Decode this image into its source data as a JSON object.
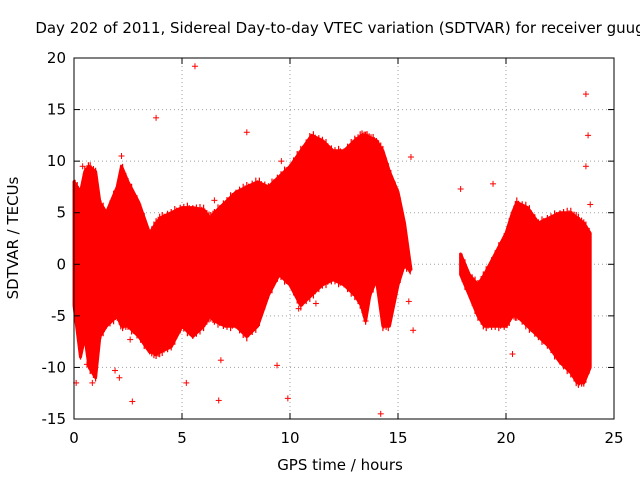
{
  "chart_data": {
    "type": "scatter",
    "title": "Day 202 of 2011, Sidereal Day-to-day VTEC variation (SDTVAR) for receiver guug",
    "xlabel": "GPS time / hours",
    "ylabel": "SDTVAR / TECUs",
    "xlim": [
      0,
      25
    ],
    "ylim": [
      -15,
      20
    ],
    "xticks": [
      0,
      5,
      10,
      15,
      20,
      25
    ],
    "yticks": [
      -15,
      -10,
      -5,
      0,
      5,
      10,
      15,
      20
    ],
    "grid": true,
    "marker": "+",
    "color": "#ff0000",
    "series": [
      {
        "name": "SDTVAR",
        "envelope": {
          "segments": [
            {
              "x": [
                0,
                0.3,
                0.5,
                0.7,
                1.0,
                1.2,
                1.5,
                2.0,
                2.2,
                2.5,
                3.0,
                3.5,
                3.8,
                4.0,
                4.5,
                5.0,
                5.5,
                6.0,
                6.3,
                6.5,
                7.0,
                7.5,
                8.0,
                8.5,
                9.0,
                9.5,
                10.0,
                10.5,
                11.0,
                11.5,
                12.0,
                12.5,
                13.0,
                13.3,
                13.5,
                13.7,
                14.0,
                14.3,
                14.6,
                15.0,
                15.3,
                15.5,
                15.6
              ],
              "upper": [
                8,
                7,
                9,
                9.5,
                9,
                6,
                5,
                7.5,
                9.5,
                8,
                6,
                3,
                4,
                4.5,
                5,
                5.5,
                5.5,
                5.3,
                4.5,
                5,
                6,
                7,
                7.5,
                8,
                7.5,
                8.5,
                9.5,
                11,
                12.5,
                12,
                11,
                11,
                12,
                12.5,
                12.5,
                12.3,
                12,
                11,
                9,
                7,
                4,
                1,
                -0.5
              ],
              "lower": [
                -4,
                -9,
                -7,
                -10,
                -11,
                -7,
                -6,
                -5,
                -6,
                -6,
                -7,
                -8.5,
                -8.7,
                -8.5,
                -8,
                -6,
                -7,
                -6,
                -5,
                -5.5,
                -6,
                -6,
                -7,
                -6,
                -3,
                -1,
                -2,
                -4,
                -3,
                -2,
                -1.5,
                -2,
                -3,
                -4,
                -5.5,
                -3,
                -1.5,
                -6,
                -6,
                -2,
                0,
                -0.5,
                -0.5
              ]
            },
            {
              "x": [
                17.9,
                18.3,
                18.7,
                19.0,
                19.5,
                20.0,
                20.3,
                20.5,
                21.0,
                21.5,
                22.0,
                22.5,
                23.0,
                23.3,
                23.6,
                23.9
              ],
              "upper": [
                1,
                -1,
                -2,
                -1,
                1,
                3,
                5,
                6,
                5.5,
                4,
                4.5,
                5,
                5,
                4.5,
                4,
                3
              ],
              "lower": [
                -1,
                -3,
                -5,
                -6,
                -6,
                -6,
                -5,
                -5,
                -6,
                -7,
                -8,
                -9.5,
                -10.5,
                -11.5,
                -11.5,
                -10
              ]
            }
          ]
        },
        "outliers": [
          [
            0.1,
            -11.5
          ],
          [
            0.4,
            9.5
          ],
          [
            0.6,
            -9.7
          ],
          [
            0.85,
            -11.5
          ],
          [
            1.9,
            -10.3
          ],
          [
            2.1,
            -11
          ],
          [
            2.2,
            10.5
          ],
          [
            2.6,
            -7.3
          ],
          [
            2.7,
            -13.3
          ],
          [
            3.8,
            14.2
          ],
          [
            5.2,
            -11.5
          ],
          [
            5.6,
            19.2
          ],
          [
            6.5,
            6.2
          ],
          [
            6.8,
            -9.3
          ],
          [
            6.7,
            -13.2
          ],
          [
            8.0,
            12.8
          ],
          [
            8.2,
            -5.8
          ],
          [
            9.4,
            -9.8
          ],
          [
            9.6,
            10
          ],
          [
            9.9,
            -13
          ],
          [
            10.4,
            -4.3
          ],
          [
            11.2,
            -3.8
          ],
          [
            13.5,
            -5.5
          ],
          [
            14.2,
            -14.5
          ],
          [
            15.6,
            10.4
          ],
          [
            15.5,
            -3.6
          ],
          [
            15.7,
            -6.4
          ],
          [
            17.9,
            7.3
          ],
          [
            19.4,
            7.8
          ],
          [
            20.3,
            -8.7
          ],
          [
            23.7,
            16.5
          ],
          [
            23.8,
            12.5
          ],
          [
            23.7,
            9.5
          ],
          [
            23.9,
            5.8
          ]
        ]
      }
    ]
  }
}
